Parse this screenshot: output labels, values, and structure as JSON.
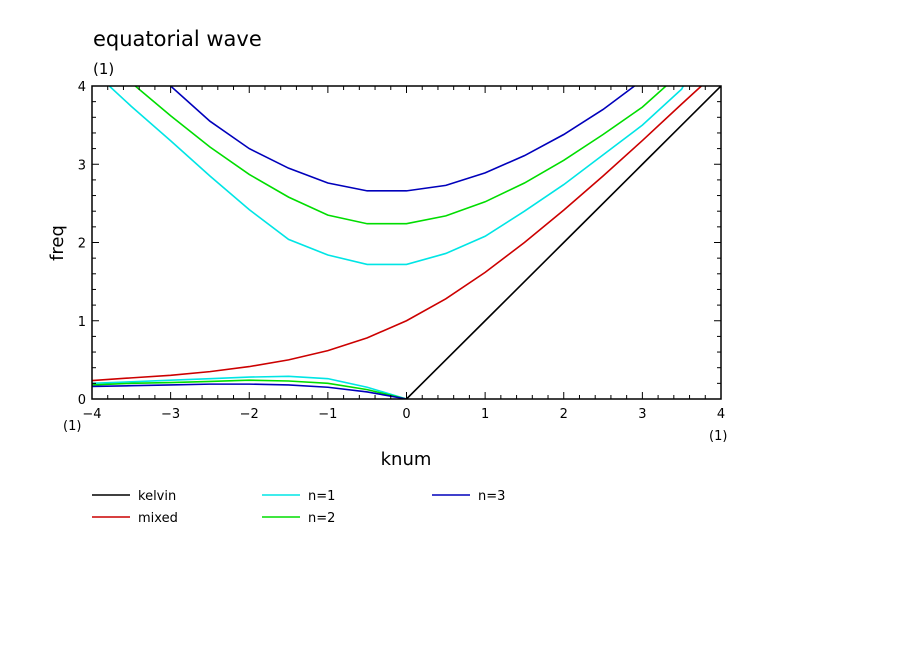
{
  "chart_data": {
    "type": "line",
    "title": "equatorial wave",
    "subtitle": "(1)",
    "xlabel": "knum",
    "ylabel": "freq",
    "x_unit_left": "(1)",
    "x_unit_right": "(1)",
    "xlim": [
      -4,
      4
    ],
    "ylim": [
      0,
      4
    ],
    "xticks": [
      "−4",
      "−3",
      "−2",
      "−1",
      "0",
      "1",
      "2",
      "3",
      "4"
    ],
    "yticks": [
      "0",
      "1",
      "2",
      "3",
      "4"
    ],
    "grid": false,
    "legend_position": "bottom",
    "series": [
      {
        "name": "kelvin",
        "color": "#000000",
        "points": [
          [
            0,
            0
          ],
          [
            1,
            1
          ],
          [
            2,
            2
          ],
          [
            3,
            3
          ],
          [
            4,
            4
          ]
        ]
      },
      {
        "name": "mixed",
        "color": "#cc0000",
        "points": [
          [
            -4,
            0.236
          ],
          [
            -3.5,
            0.27
          ],
          [
            -3,
            0.303
          ],
          [
            -2.5,
            0.35
          ],
          [
            -2,
            0.414
          ],
          [
            -1.5,
            0.5
          ],
          [
            -1,
            0.618
          ],
          [
            -0.5,
            0.781
          ],
          [
            0,
            1
          ],
          [
            0.5,
            1.28
          ],
          [
            1,
            1.618
          ],
          [
            1.5,
            2
          ],
          [
            2,
            2.414
          ],
          [
            2.5,
            2.85
          ],
          [
            3,
            3.303
          ],
          [
            3.5,
            3.77
          ],
          [
            3.75,
            4
          ]
        ]
      },
      {
        "name": "n=1",
        "color": "#00e5e5",
        "points": [
          [
            -3.78,
            4
          ],
          [
            -3.5,
            3.74
          ],
          [
            -3,
            3.3
          ],
          [
            -2.5,
            2.85
          ],
          [
            -2,
            2.42
          ],
          [
            -1.5,
            2.04
          ],
          [
            -1,
            1.84
          ],
          [
            -0.5,
            1.72
          ],
          [
            0,
            1.72
          ],
          [
            0.5,
            1.86
          ],
          [
            1,
            2.08
          ],
          [
            1.5,
            2.4
          ],
          [
            2,
            2.74
          ],
          [
            2.5,
            3.12
          ],
          [
            3,
            3.5
          ],
          [
            3.5,
            3.96
          ],
          [
            3.52,
            4
          ]
        ],
        "lower_branch": [
          [
            -4,
            0.2
          ],
          [
            -3.5,
            0.22
          ],
          [
            -3,
            0.24
          ],
          [
            -2.5,
            0.26
          ],
          [
            -2,
            0.28
          ],
          [
            -1.5,
            0.29
          ],
          [
            -1,
            0.26
          ],
          [
            -0.5,
            0.15
          ],
          [
            0,
            0
          ]
        ]
      },
      {
        "name": "n=2",
        "color": "#00dd00",
        "points": [
          [
            -3.45,
            4
          ],
          [
            -3,
            3.62
          ],
          [
            -2.5,
            3.22
          ],
          [
            -2,
            2.87
          ],
          [
            -1.5,
            2.58
          ],
          [
            -1,
            2.35
          ],
          [
            -0.5,
            2.24
          ],
          [
            0,
            2.24
          ],
          [
            0.5,
            2.34
          ],
          [
            1,
            2.52
          ],
          [
            1.5,
            2.76
          ],
          [
            2,
            3.05
          ],
          [
            2.5,
            3.38
          ],
          [
            3,
            3.73
          ],
          [
            3.3,
            4
          ]
        ],
        "lower_branch": [
          [
            -4,
            0.18
          ],
          [
            -3.5,
            0.2
          ],
          [
            -3,
            0.21
          ],
          [
            -2.5,
            0.225
          ],
          [
            -2,
            0.24
          ],
          [
            -1.5,
            0.23
          ],
          [
            -1,
            0.2
          ],
          [
            -0.5,
            0.12
          ],
          [
            0,
            0
          ]
        ]
      },
      {
        "name": "n=3",
        "color": "#0000bb",
        "points": [
          [
            -3,
            4
          ],
          [
            -2.5,
            3.55
          ],
          [
            -2,
            3.2
          ],
          [
            -1.5,
            2.95
          ],
          [
            -1,
            2.76
          ],
          [
            -0.5,
            2.66
          ],
          [
            0,
            2.66
          ],
          [
            0.5,
            2.73
          ],
          [
            1,
            2.89
          ],
          [
            1.5,
            3.11
          ],
          [
            2,
            3.38
          ],
          [
            2.5,
            3.7
          ],
          [
            2.9,
            4
          ]
        ],
        "lower_branch": [
          [
            -4,
            0.16
          ],
          [
            -3.5,
            0.17
          ],
          [
            -3,
            0.18
          ],
          [
            -2.5,
            0.19
          ],
          [
            -2,
            0.19
          ],
          [
            -1.5,
            0.18
          ],
          [
            -1,
            0.15
          ],
          [
            -0.5,
            0.09
          ],
          [
            0,
            0
          ]
        ]
      }
    ]
  }
}
